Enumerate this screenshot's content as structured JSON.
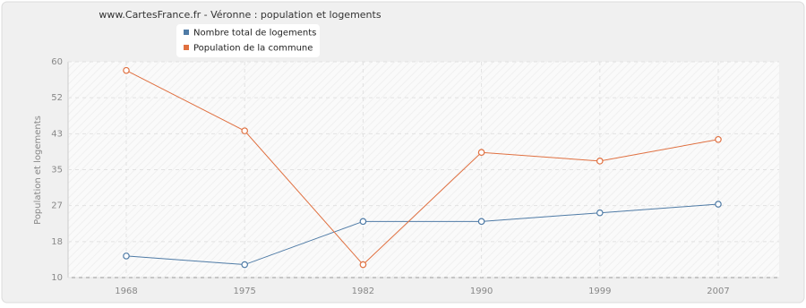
{
  "chart_data": {
    "type": "line",
    "title": "www.CartesFrance.fr - Véronne : population et logements",
    "y_label": "Population et logements",
    "categories": [
      "1968",
      "1975",
      "1982",
      "1990",
      "1999",
      "2007"
    ],
    "series": [
      {
        "name": "Nombre total de logements",
        "color": "#4f7ba6",
        "values": [
          15,
          13,
          23,
          23,
          25,
          27
        ]
      },
      {
        "name": "Population de la commune",
        "color": "#e07040",
        "values": [
          58,
          44,
          13,
          39,
          37,
          42
        ]
      }
    ],
    "ylim": [
      10,
      60
    ],
    "yticks": [
      10,
      {
        "value": 18.33,
        "label": "18"
      },
      {
        "value": 26.67,
        "label": "27"
      },
      35,
      {
        "value": 43.33,
        "label": "43"
      },
      {
        "value": 51.67,
        "label": "52"
      },
      60
    ],
    "grid": true
  }
}
